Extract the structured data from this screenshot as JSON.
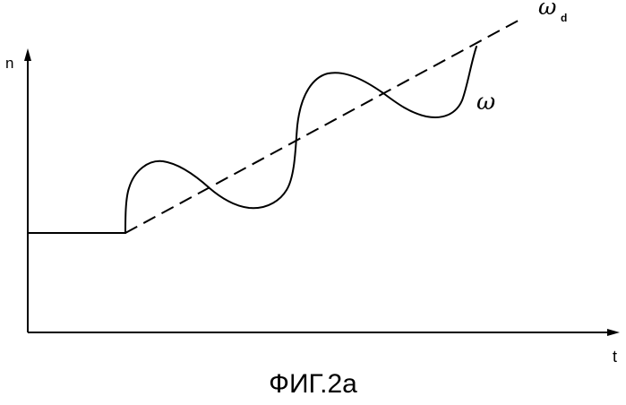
{
  "figure": {
    "caption": "ФИГ.2а"
  },
  "axes": {
    "y_label": "n",
    "x_label": "t"
  },
  "curves": {
    "actual_label": "ω",
    "desired_symbol": "ω",
    "desired_subscript": "d"
  }
}
